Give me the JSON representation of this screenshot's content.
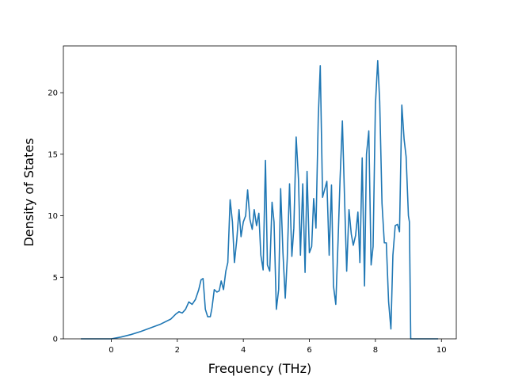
{
  "chart_data": {
    "type": "line",
    "title": "",
    "xlabel": "Frequency (THz)",
    "ylabel": "Density of States",
    "xlim": [
      -1.45,
      10.45
    ],
    "ylim": [
      0,
      23.8
    ],
    "grid": false,
    "legend": "none",
    "colors": {
      "line": "#1f77b4",
      "axis": "#000000",
      "background": "#ffffff"
    },
    "x_ticks": [
      0,
      2,
      4,
      6,
      8,
      10
    ],
    "x_tick_labels": [
      "0",
      "2",
      "4",
      "6",
      "8",
      "10"
    ],
    "y_ticks": [
      0,
      5,
      10,
      15,
      20
    ],
    "y_tick_labels": [
      "0",
      "5",
      "10",
      "15",
      "20"
    ],
    "series": [
      {
        "x": [
          -0.92,
          0.0,
          0.3,
          0.6,
          0.9,
          1.2,
          1.5,
          1.8,
          1.95,
          2.05,
          2.15,
          2.25,
          2.35,
          2.45,
          2.55,
          2.65,
          2.72,
          2.78,
          2.85,
          2.92,
          3.0,
          3.05,
          3.12,
          3.2,
          3.27,
          3.33,
          3.4,
          3.47,
          3.53,
          3.6,
          3.67,
          3.73,
          3.8,
          3.87,
          3.93,
          4.0,
          4.07,
          4.13,
          4.2,
          4.27,
          4.33,
          4.4,
          4.47,
          4.53,
          4.6,
          4.67,
          4.73,
          4.8,
          4.87,
          4.93,
          5.0,
          5.07,
          5.13,
          5.2,
          5.27,
          5.33,
          5.4,
          5.47,
          5.53,
          5.6,
          5.67,
          5.73,
          5.8,
          5.87,
          5.93,
          6.0,
          6.07,
          6.13,
          6.2,
          6.27,
          6.33,
          6.4,
          6.47,
          6.53,
          6.6,
          6.67,
          6.73,
          6.8,
          6.87,
          6.93,
          7.0,
          7.07,
          7.13,
          7.2,
          7.27,
          7.33,
          7.4,
          7.47,
          7.53,
          7.6,
          7.67,
          7.73,
          7.8,
          7.87,
          7.93,
          8.0,
          8.07,
          8.13,
          8.2,
          8.27,
          8.33,
          8.4,
          8.47,
          8.53,
          8.6,
          8.67,
          8.73,
          8.8,
          8.87,
          8.93,
          9.0,
          9.03,
          9.07,
          9.9
        ],
        "y": [
          0,
          0,
          0.15,
          0.35,
          0.6,
          0.9,
          1.2,
          1.6,
          2.0,
          2.2,
          2.1,
          2.4,
          3.0,
          2.8,
          3.2,
          4.0,
          4.8,
          4.9,
          2.4,
          1.8,
          1.8,
          2.5,
          4.0,
          3.8,
          3.9,
          4.7,
          4.0,
          5.5,
          6.2,
          11.3,
          9.5,
          6.2,
          8.0,
          10.5,
          8.3,
          9.5,
          10.0,
          12.1,
          9.7,
          8.9,
          10.5,
          9.2,
          10.2,
          6.8,
          5.6,
          14.5,
          6.0,
          5.5,
          11.1,
          9.5,
          2.4,
          4.0,
          12.2,
          7.0,
          3.3,
          6.5,
          12.6,
          6.7,
          9.0,
          16.4,
          13.0,
          6.8,
          12.6,
          5.4,
          13.6,
          7.0,
          7.5,
          11.4,
          9.0,
          18.0,
          22.2,
          11.5,
          12.2,
          12.8,
          6.8,
          12.5,
          4.3,
          2.8,
          8.0,
          13.0,
          17.7,
          11.0,
          5.5,
          10.5,
          8.5,
          7.6,
          8.4,
          10.3,
          6.2,
          14.7,
          4.3,
          15.0,
          16.9,
          6.0,
          7.5,
          19.0,
          22.6,
          19.3,
          11.0,
          7.8,
          7.8,
          3.0,
          0.8,
          6.8,
          9.2,
          9.3,
          8.7,
          19.0,
          16.2,
          14.8,
          10.0,
          9.5,
          0,
          0
        ]
      }
    ]
  }
}
